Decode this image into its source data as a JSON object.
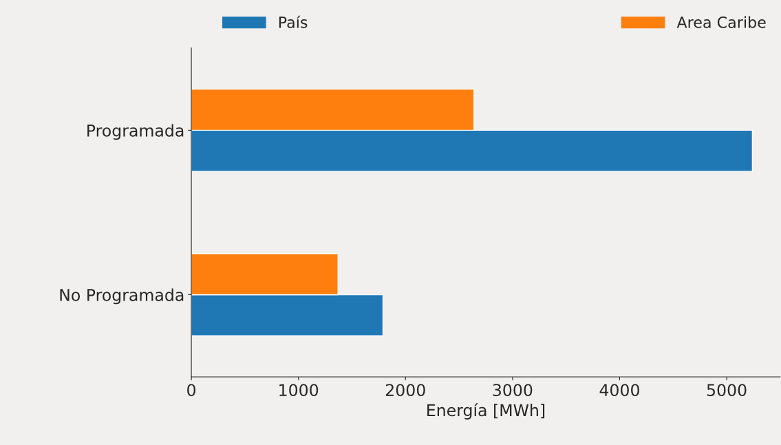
{
  "chart_data": {
    "type": "bar",
    "orientation": "horizontal",
    "xlabel": "Energía [MWh]",
    "categories": [
      "Programada",
      "No Programada"
    ],
    "series": [
      {
        "name": "País",
        "color": "#1f77b4",
        "values": [
          5240,
          1790
        ]
      },
      {
        "name": "Area Caribe",
        "color": "#ff7f0e",
        "values": [
          2640,
          1370
        ]
      }
    ],
    "xlim": [
      0,
      5500
    ],
    "xticks": [
      0,
      1000,
      2000,
      3000,
      4000,
      5000
    ],
    "grid": false,
    "legend": "top"
  }
}
